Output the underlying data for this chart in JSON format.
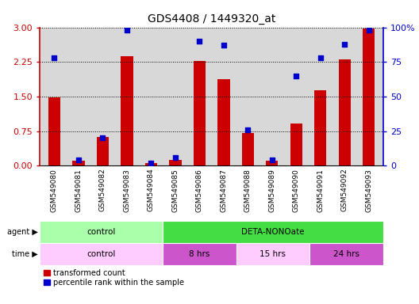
{
  "title": "GDS4408 / 1449320_at",
  "samples": [
    "GSM549080",
    "GSM549081",
    "GSM549082",
    "GSM549083",
    "GSM549084",
    "GSM549085",
    "GSM549086",
    "GSM549087",
    "GSM549088",
    "GSM549089",
    "GSM549090",
    "GSM549091",
    "GSM549092",
    "GSM549093"
  ],
  "bar_values": [
    1.48,
    0.1,
    0.62,
    2.38,
    0.06,
    0.12,
    2.27,
    1.88,
    0.7,
    0.1,
    0.92,
    1.63,
    2.3,
    2.97
  ],
  "dot_values": [
    78,
    4,
    20,
    98,
    2,
    6,
    90,
    87,
    26,
    4,
    65,
    78,
    88,
    98
  ],
  "bar_color": "#cc0000",
  "dot_color": "#0000cc",
  "ylim_left": [
    0,
    3
  ],
  "ylim_right": [
    0,
    100
  ],
  "yticks_left": [
    0,
    0.75,
    1.5,
    2.25,
    3
  ],
  "yticks_right": [
    0,
    25,
    50,
    75,
    100
  ],
  "agent_groups": [
    {
      "label": "control",
      "start": 0,
      "end": 5,
      "color": "#aaffaa"
    },
    {
      "label": "DETA-NONOate",
      "start": 5,
      "end": 14,
      "color": "#44dd44"
    }
  ],
  "time_groups": [
    {
      "label": "control",
      "start": 0,
      "end": 5,
      "color": "#ffccff"
    },
    {
      "label": "8 hrs",
      "start": 5,
      "end": 8,
      "color": "#cc55cc"
    },
    {
      "label": "15 hrs",
      "start": 8,
      "end": 11,
      "color": "#ffccff"
    },
    {
      "label": "24 hrs",
      "start": 11,
      "end": 14,
      "color": "#cc55cc"
    }
  ],
  "legend_bar_label": "transformed count",
  "legend_dot_label": "percentile rank within the sample",
  "plot_bg": "#d8d8d8",
  "tick_bg": "#c8c8c8",
  "left_tick_color": "#cc0000",
  "right_tick_color": "#0000cc",
  "title_fontsize": 10,
  "tick_label_fontsize": 6.5,
  "bar_width": 0.5
}
